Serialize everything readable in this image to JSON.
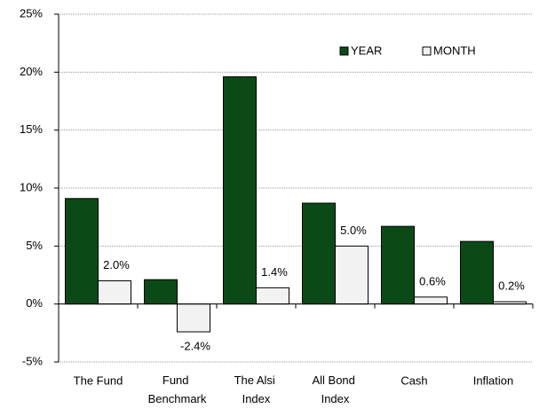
{
  "chart_data": {
    "type": "bar",
    "categories": [
      "The Fund",
      "Fund Benchmark",
      "The Alsi Index",
      "All Bond Index",
      "Cash",
      "Inflation"
    ],
    "series": [
      {
        "name": "YEAR",
        "color": "#0b4a17",
        "values": [
          9.1,
          2.1,
          19.6,
          8.7,
          6.7,
          5.4
        ]
      },
      {
        "name": "MONTH",
        "color": "#f2f2f2",
        "values": [
          2.0,
          -2.4,
          1.4,
          5.0,
          0.6,
          0.2
        ],
        "value_labels": [
          "2.0%",
          "-2.4%",
          "1.4%",
          "5.0%",
          "0.6%",
          "0.2%"
        ]
      }
    ],
    "ylim": [
      -5,
      25
    ],
    "yticks": [
      {
        "value": -5,
        "label": "-5%"
      },
      {
        "value": 0,
        "label": "0%"
      },
      {
        "value": 5,
        "label": "5%"
      },
      {
        "value": 10,
        "label": "10%"
      },
      {
        "value": 15,
        "label": "15%"
      },
      {
        "value": 20,
        "label": "20%"
      },
      {
        "value": 25,
        "label": "25%"
      }
    ],
    "grid": true,
    "legend": "top-right"
  }
}
